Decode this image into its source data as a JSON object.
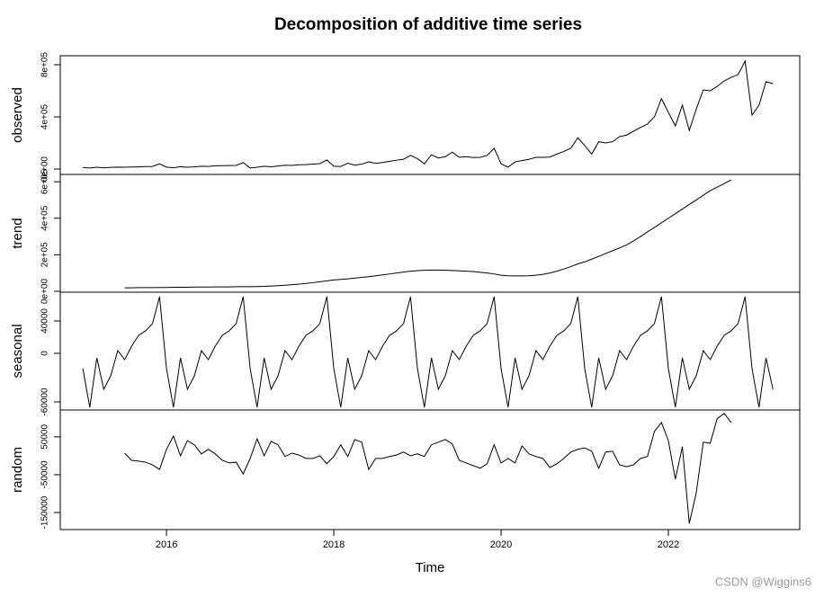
{
  "chart_data": {
    "type": "line",
    "title": "Decomposition of additive time series",
    "xlabel": "Time",
    "watermark": "CSDN @Wiggins6",
    "color": "#000000",
    "xlim": [
      2014.73,
      2023.57
    ],
    "xticks": [
      2016,
      2018,
      2020,
      2022
    ],
    "x": [
      2015,
      2015.083,
      2015.167,
      2015.25,
      2015.333,
      2015.417,
      2015.5,
      2015.583,
      2015.667,
      2015.75,
      2015.833,
      2015.917,
      2016,
      2016.083,
      2016.167,
      2016.25,
      2016.333,
      2016.417,
      2016.5,
      2016.583,
      2016.667,
      2016.75,
      2016.833,
      2016.917,
      2017,
      2017.083,
      2017.167,
      2017.25,
      2017.333,
      2017.417,
      2017.5,
      2017.583,
      2017.667,
      2017.75,
      2017.833,
      2017.917,
      2018,
      2018.083,
      2018.167,
      2018.25,
      2018.333,
      2018.417,
      2018.5,
      2018.583,
      2018.667,
      2018.75,
      2018.833,
      2018.917,
      2019,
      2019.083,
      2019.167,
      2019.25,
      2019.333,
      2019.417,
      2019.5,
      2019.583,
      2019.667,
      2019.75,
      2019.833,
      2019.917,
      2020,
      2020.083,
      2020.167,
      2020.25,
      2020.333,
      2020.417,
      2020.5,
      2020.583,
      2020.667,
      2020.75,
      2020.833,
      2020.917,
      2021,
      2021.083,
      2021.167,
      2021.25,
      2021.333,
      2021.417,
      2021.5,
      2021.583,
      2021.667,
      2021.75,
      2021.833,
      2021.917,
      2022,
      2022.083,
      2022.167,
      2022.25,
      2022.333,
      2022.417,
      2022.5,
      2022.583,
      2022.667,
      2022.75,
      2022.833,
      2022.917,
      2023,
      2023.083,
      2023.167,
      2023.25
    ],
    "panels": [
      {
        "ylabel": "observed",
        "ylim": [
          -41000,
          869000
        ],
        "yticks": [
          {
            "value": 0,
            "label": "0e+00"
          },
          {
            "value": 400000,
            "label": "4e+05"
          },
          {
            "value": 800000,
            "label": "8e+05"
          }
        ],
        "values": [
          12000,
          8000,
          14000,
          10000,
          13000,
          15000,
          14000,
          16000,
          17000,
          19000,
          20000,
          40000,
          15000,
          10000,
          18000,
          14000,
          17000,
          22000,
          20000,
          25000,
          26000,
          27000,
          28000,
          50000,
          8000,
          14000,
          22000,
          18000,
          24000,
          30000,
          28000,
          33000,
          34000,
          38000,
          42000,
          70000,
          22000,
          20000,
          45000,
          30000,
          38000,
          55000,
          44000,
          50000,
          60000,
          68000,
          75000,
          105000,
          80000,
          40000,
          110000,
          85000,
          95000,
          130000,
          90000,
          95000,
          88000,
          90000,
          105000,
          160000,
          40000,
          15000,
          55000,
          65000,
          75000,
          90000,
          90000,
          92000,
          115000,
          135000,
          160000,
          240000,
          180000,
          115000,
          210000,
          200000,
          210000,
          250000,
          260000,
          290000,
          320000,
          345000,
          400000,
          540000,
          435000,
          331000,
          490000,
          297000,
          460000,
          607000,
          600000,
          634000,
          676000,
          703000,
          724000,
          828000,
          414000,
          490000,
          670000,
          655000
        ]
      },
      {
        "ylabel": "trend",
        "ylim": [
          -5000,
          640000
        ],
        "yticks": [
          {
            "value": 0,
            "label": "0e+00"
          },
          {
            "value": 200000,
            "label": "2e+05"
          },
          {
            "value": 400000,
            "label": "4e+05"
          },
          {
            "value": 600000,
            "label": "6e+05"
          }
        ],
        "values": [
          null,
          null,
          null,
          null,
          null,
          null,
          19000,
          19000,
          20000,
          20000,
          20000,
          21000,
          21000,
          22000,
          22000,
          22000,
          23000,
          23000,
          23000,
          24000,
          24000,
          24000,
          25000,
          25000,
          25000,
          26000,
          27000,
          29000,
          31000,
          33000,
          36000,
          39000,
          43000,
          47000,
          52000,
          57000,
          62000,
          65000,
          68000,
          72000,
          76000,
          80000,
          85000,
          90000,
          95000,
          100000,
          105000,
          110000,
          113000,
          115000,
          116000,
          116000,
          115000,
          114000,
          112000,
          110000,
          108000,
          104000,
          100000,
          95000,
          88000,
          85000,
          84000,
          84000,
          85000,
          88000,
          93000,
          100000,
          110000,
          122000,
          135000,
          150000,
          161000,
          176000,
          191000,
          207000,
          222000,
          238000,
          254000,
          276000,
          300000,
          325000,
          350000,
          375000,
          400000,
          425000,
          450000,
          476000,
          500000,
          526000,
          551000,
          570000,
          590000,
          610000,
          null,
          null,
          null,
          null,
          null,
          null
        ]
      },
      {
        "ylabel": "seasonal",
        "ylim": [
          -70000,
          75500
        ],
        "yticks": [
          -60000,
          0,
          40000
        ],
        "values": [
          -18900,
          -66700,
          -5600,
          -44400,
          -27800,
          3300,
          -7800,
          8900,
          22200,
          27800,
          36700,
          70000,
          -18900,
          -66700,
          -5600,
          -44400,
          -27800,
          3300,
          -7800,
          8900,
          22200,
          27800,
          36700,
          70000,
          -18900,
          -66700,
          -5600,
          -44400,
          -27800,
          3300,
          -7800,
          8900,
          22200,
          27800,
          36700,
          70000,
          -18900,
          -66700,
          -5600,
          -44400,
          -27800,
          3300,
          -7800,
          8900,
          22200,
          27800,
          36700,
          70000,
          -18900,
          -66700,
          -5600,
          -44400,
          -27800,
          3300,
          -7800,
          8900,
          22200,
          27800,
          36700,
          70000,
          -18900,
          -66700,
          -5600,
          -44400,
          -27800,
          3300,
          -7800,
          8900,
          22200,
          27800,
          36700,
          70000,
          -18900,
          -66700,
          -5600,
          -44400,
          -27800,
          3300,
          -7800,
          8900,
          22200,
          27800,
          36700,
          70000,
          -18900,
          -66700,
          -5600,
          -44400,
          -27800,
          3300,
          -7800,
          8900,
          22200,
          27800,
          36700,
          70000,
          -18900,
          -66700,
          -5600,
          -44400
        ]
      },
      {
        "ylabel": "random",
        "ylim": [
          -195000,
          121000
        ],
        "yticks": [
          -150000,
          -50000,
          50000
        ],
        "values": [
          null,
          null,
          null,
          null,
          null,
          null,
          7000,
          -12000,
          -14000,
          -17000,
          -24000,
          -36000,
          17000,
          52000,
          0,
          40000,
          29000,
          5000,
          17000,
          5000,
          -12000,
          -19000,
          -17000,
          -48000,
          -7000,
          45000,
          0,
          38000,
          29000,
          -2000,
          7000,
          2000,
          -7000,
          -7000,
          0,
          -21000,
          -2000,
          29000,
          -2000,
          43000,
          36000,
          -36000,
          -7000,
          -7000,
          -2000,
          2000,
          10000,
          0,
          5000,
          -2000,
          29000,
          36000,
          43000,
          31000,
          -12000,
          -19000,
          -26000,
          -33000,
          -21000,
          29000,
          -19000,
          -7000,
          -19000,
          26000,
          5000,
          -2000,
          -7000,
          -31000,
          -21000,
          -7000,
          10000,
          17000,
          21000,
          12000,
          -33000,
          10000,
          12000,
          -24000,
          -29000,
          -24000,
          -7000,
          -2000,
          64000,
          88000,
          40000,
          -62000,
          24000,
          -179000,
          -98000,
          36000,
          33000,
          98000,
          112000,
          88000,
          null,
          null,
          null,
          null,
          null,
          null
        ]
      }
    ]
  }
}
